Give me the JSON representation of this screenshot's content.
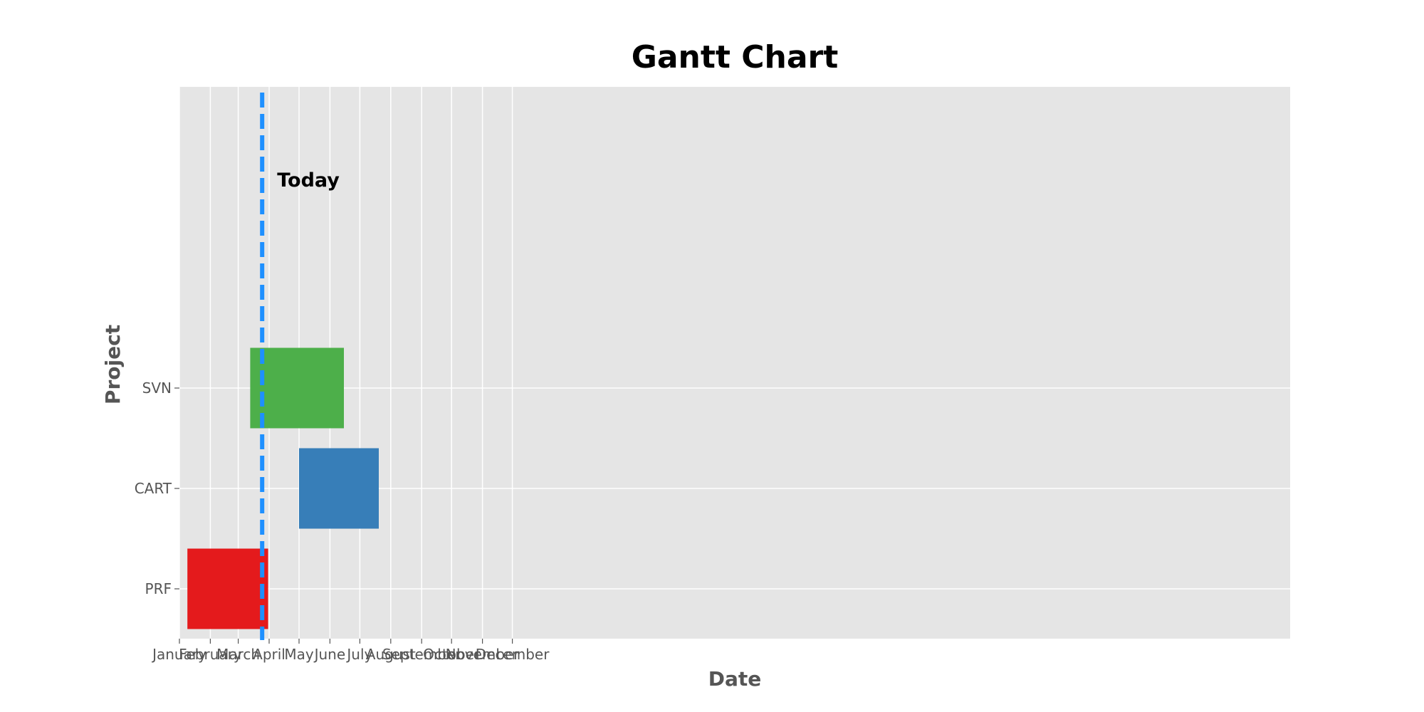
{
  "chart_data": {
    "type": "gantt",
    "title": "Gantt Chart",
    "xlabel": "Date",
    "ylabel": "Project",
    "x_ticks": [
      "January",
      "February",
      "March",
      "April",
      "May",
      "June",
      "July",
      "August",
      "September",
      "October",
      "November",
      "December"
    ],
    "x_range": [
      "2023-01-01",
      "2024-01-01"
    ],
    "grid": true,
    "categories": [
      "PRF",
      "CART",
      "SVN"
    ],
    "tasks": [
      {
        "project": "PRF",
        "start": "2023-01-09",
        "end": "2023-03-31",
        "color": "#e41a1c"
      },
      {
        "project": "CART",
        "start": "2023-05-01",
        "end": "2023-07-20",
        "color": "#377eb8"
      },
      {
        "project": "SVN",
        "start": "2023-03-13",
        "end": "2023-06-15",
        "color": "#4daf4a"
      }
    ],
    "today": {
      "date": "2023-03-25",
      "label": "Today",
      "color": "#1e90ff"
    }
  }
}
